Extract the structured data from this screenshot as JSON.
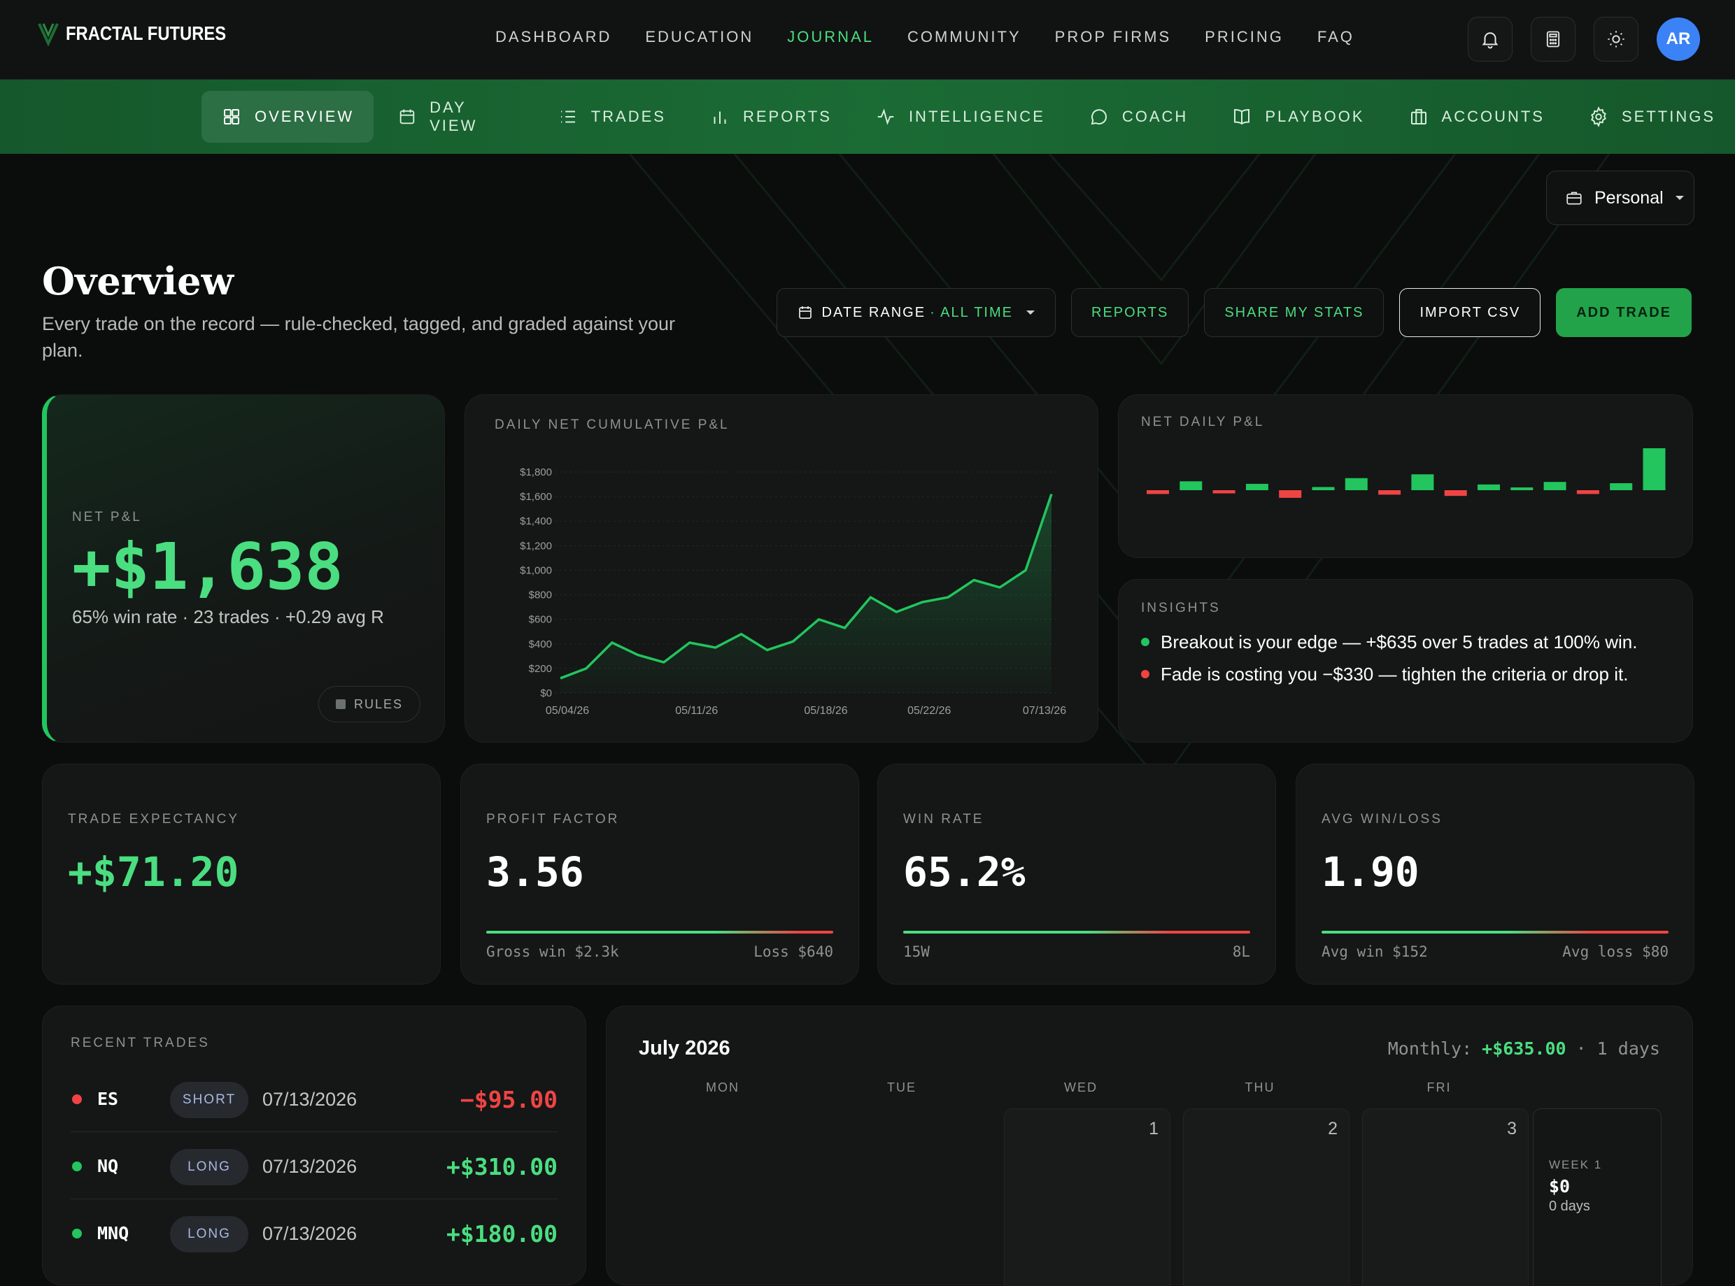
{
  "brand": {
    "name": "FRACTAL FUTURES"
  },
  "main_nav": [
    {
      "label": "DASHBOARD",
      "active": false
    },
    {
      "label": "EDUCATION",
      "active": false
    },
    {
      "label": "JOURNAL",
      "active": true
    },
    {
      "label": "COMMUNITY",
      "active": false
    },
    {
      "label": "PROP FIRMS",
      "active": false
    },
    {
      "label": "PRICING",
      "active": false
    },
    {
      "label": "FAQ",
      "active": false
    }
  ],
  "topbar": {
    "icons": [
      "bell-icon",
      "calculator-icon",
      "sun-icon"
    ],
    "avatar_initials": "AR"
  },
  "sub_nav": [
    {
      "label": "OVERVIEW",
      "icon": "grid-icon",
      "active": true
    },
    {
      "label": "DAY VIEW",
      "icon": "calendar-icon",
      "active": false
    },
    {
      "label": "TRADES",
      "icon": "list-icon",
      "active": false
    },
    {
      "label": "REPORTS",
      "icon": "bar-chart-icon",
      "active": false
    },
    {
      "label": "INTELLIGENCE",
      "icon": "pulse-icon",
      "active": false
    },
    {
      "label": "COACH",
      "icon": "chat-icon",
      "active": false
    },
    {
      "label": "PLAYBOOK",
      "icon": "book-icon",
      "active": false
    },
    {
      "label": "ACCOUNTS",
      "icon": "building-icon",
      "active": false
    },
    {
      "label": "SETTINGS",
      "icon": "gear-icon",
      "active": false
    }
  ],
  "account_select": {
    "value": "Personal"
  },
  "page": {
    "title": "Overview",
    "subtitle": "Every trade on the record — rule-checked, tagged, and graded against your plan."
  },
  "actions": {
    "date_range_label": "DATE RANGE",
    "date_range_value": "· ALL TIME",
    "reports": "REPORTS",
    "share": "SHARE MY STATS",
    "import": "IMPORT CSV",
    "add": "ADD TRADE"
  },
  "net_pnl": {
    "label": "NET P&L",
    "value": "+$1,638",
    "meta": "65% win rate · 23 trades · +0.29 avg R",
    "rules": "RULES"
  },
  "colors": {
    "green": "#4ade80",
    "red": "#ef4444",
    "bg": "#0b0c0c",
    "card": "#151616"
  },
  "chart_data": [
    {
      "type": "area",
      "title": "DAILY NET CUMULATIVE P&L",
      "ylim": [
        0,
        1800
      ],
      "y_ticks": [
        "$0",
        "$200",
        "$400",
        "$600",
        "$800",
        "$1,000",
        "$1,200",
        "$1,400",
        "$1,600",
        "$1,800"
      ],
      "x_ticks": [
        "05/04/26",
        "05/11/26",
        "05/18/26",
        "05/22/26",
        "07/13/26"
      ],
      "values": [
        120,
        200,
        410,
        310,
        250,
        410,
        370,
        480,
        350,
        420,
        600,
        530,
        780,
        660,
        740,
        780,
        920,
        860,
        1000,
        1620
      ]
    },
    {
      "type": "bar",
      "title": "NET DAILY P&L",
      "values": [
        -30,
        70,
        -25,
        50,
        -60,
        25,
        95,
        -35,
        125,
        -45,
        45,
        15,
        65,
        -30,
        55,
        330
      ]
    }
  ],
  "insights": {
    "label": "INSIGHTS",
    "items": [
      {
        "text": "Breakout is your edge — +$635 over 5 trades at 100% win.",
        "color": "#22c55e"
      },
      {
        "text": "Fade is costing you −$330 — tighten the criteria or drop it.",
        "color": "#ef4444"
      }
    ]
  },
  "stats": [
    {
      "label": "TRADE EXPECTANCY",
      "value": "+$71.20",
      "positive": true,
      "left": "",
      "right": "",
      "bar": false
    },
    {
      "label": "PROFIT FACTOR",
      "value": "3.56",
      "positive": false,
      "left": "Gross win $2.3k",
      "right": "Loss $640",
      "bar": true,
      "split": 0.78
    },
    {
      "label": "WIN RATE",
      "value": "65.2%",
      "positive": false,
      "left": "15W",
      "right": "8L",
      "bar": true,
      "split": 0.652
    },
    {
      "label": "AVG WIN/LOSS",
      "value": "1.90",
      "positive": false,
      "left": "Avg win $152",
      "right": "Avg loss $80",
      "bar": true,
      "split": 0.66
    }
  ],
  "recent_trades": {
    "label": "RECENT TRADES",
    "rows": [
      {
        "symbol": "ES",
        "side": "SHORT",
        "date": "07/13/2026",
        "pnl": "−$95.00",
        "win": false
      },
      {
        "symbol": "NQ",
        "side": "LONG",
        "date": "07/13/2026",
        "pnl": "+$310.00",
        "win": true
      },
      {
        "symbol": "MNQ",
        "side": "LONG",
        "date": "07/13/2026",
        "pnl": "+$180.00",
        "win": true
      }
    ]
  },
  "calendar": {
    "month": "July 2026",
    "monthly_label": "Monthly:",
    "monthly_value": "+$635.00",
    "days_count": "· 1 days",
    "weekdays": [
      "MON",
      "TUE",
      "WED",
      "THU",
      "FRI"
    ],
    "days": [
      "",
      "",
      "1",
      "2",
      "3"
    ],
    "week": {
      "label": "WEEK 1",
      "value": "$0",
      "days": "0 days"
    }
  }
}
